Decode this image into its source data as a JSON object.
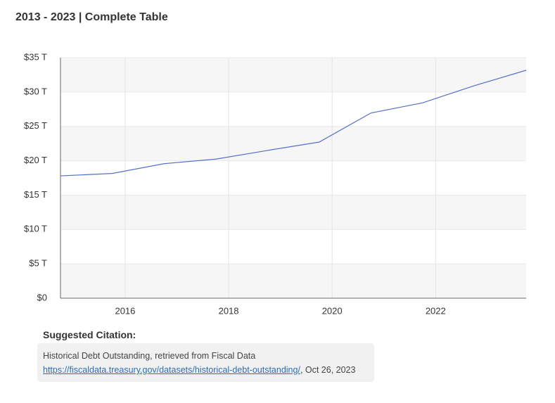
{
  "chart_data": {
    "type": "line",
    "title": "2013 - 2023 | Complete Table",
    "x": [
      2014.75,
      2015.75,
      2016.75,
      2017.75,
      2018.75,
      2019.75,
      2020.75,
      2021.75,
      2022.75,
      2023.75
    ],
    "values": [
      17.8,
      18.15,
      19.57,
      20.24,
      21.5,
      22.72,
      26.95,
      28.43,
      30.93,
      33.17
    ],
    "color": "#5470c6",
    "xlim": [
      2014.75,
      2023.75
    ],
    "xticks": [
      2016,
      2018,
      2020,
      2022
    ],
    "ylim": [
      0,
      35
    ],
    "yticks": [
      {
        "value": 0,
        "label": "$0"
      },
      {
        "value": 5,
        "label": "$5 T"
      },
      {
        "value": 10,
        "label": "$10 T"
      },
      {
        "value": 15,
        "label": "$15 T"
      },
      {
        "value": 20,
        "label": "$20 T"
      },
      {
        "value": 25,
        "label": "$25 T"
      },
      {
        "value": 30,
        "label": "$30 T"
      },
      {
        "value": 35,
        "label": "$35 T"
      }
    ],
    "grid": true
  },
  "citation": {
    "heading": "Suggested Citation:",
    "text": "Historical Debt Outstanding, retrieved from Fiscal Data",
    "link": "https://fiscaldata.treasury.gov/datasets/historical-debt-outstanding/",
    "date": ", Oct 26, 2023"
  }
}
